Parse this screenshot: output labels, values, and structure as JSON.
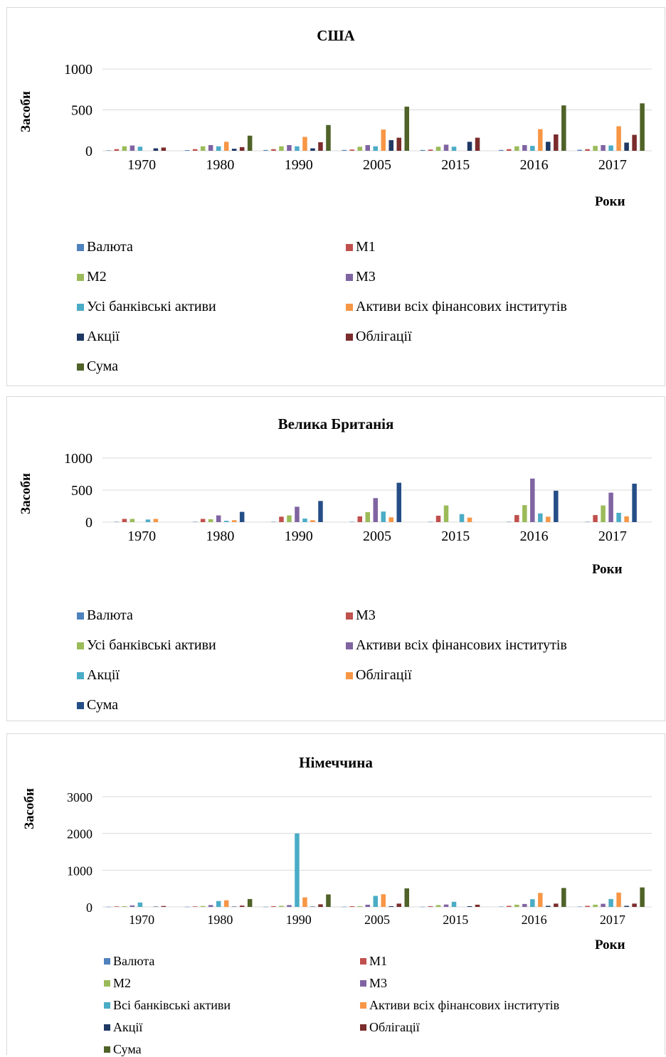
{
  "chart_data": [
    {
      "type": "bar",
      "title": "США",
      "xlabel": "Роки",
      "ylabel": "Засоби",
      "ylim": [
        0,
        1000
      ],
      "yticks": [
        0,
        500,
        1000
      ],
      "grid": true,
      "legend_position": "bottom",
      "categories": [
        "1970",
        "1980",
        "1990",
        "2005",
        "2015",
        "2016",
        "2017"
      ],
      "series": [
        {
          "name": "Валюта",
          "color": "#4f81bd",
          "values": [
            5,
            8,
            10,
            10,
            10,
            10,
            12
          ]
        },
        {
          "name": "М1",
          "color": "#c0504d",
          "values": [
            20,
            20,
            20,
            15,
            15,
            20,
            20
          ]
        },
        {
          "name": "М2",
          "color": "#9bbb59",
          "values": [
            55,
            55,
            55,
            50,
            50,
            55,
            60
          ]
        },
        {
          "name": "М3",
          "color": "#8064a2",
          "values": [
            65,
            70,
            70,
            70,
            75,
            70,
            70
          ]
        },
        {
          "name": "Усі банківські активи",
          "color": "#4bacc6",
          "values": [
            50,
            55,
            55,
            55,
            50,
            60,
            65
          ]
        },
        {
          "name": "Активи всіх фінансових інститутів",
          "color": "#f79646",
          "values": [
            0,
            110,
            170,
            260,
            0,
            265,
            300
          ]
        },
        {
          "name": "Акції",
          "color": "#1f3864",
          "values": [
            30,
            25,
            30,
            130,
            110,
            110,
            100
          ]
        },
        {
          "name": "Облігації",
          "color": "#7b2c2c",
          "values": [
            40,
            45,
            105,
            160,
            160,
            200,
            195
          ]
        },
        {
          "name": "Сума",
          "color": "#4f6228",
          "values": [
            0,
            185,
            315,
            540,
            0,
            555,
            580
          ]
        }
      ]
    },
    {
      "type": "bar",
      "title": "Велика Британія",
      "xlabel": "Роки",
      "ylabel": "Засоби",
      "ylim": [
        0,
        1000
      ],
      "yticks": [
        0,
        500,
        1000
      ],
      "grid": true,
      "legend_position": "bottom",
      "categories": [
        "1970",
        "1980",
        "1990",
        "2005",
        "2015",
        "2016",
        "2017"
      ],
      "series": [
        {
          "name": "Валюта",
          "color": "#4f81bd",
          "values": [
            5,
            5,
            5,
            5,
            5,
            5,
            5
          ]
        },
        {
          "name": "М3",
          "color": "#c0504d",
          "values": [
            50,
            50,
            85,
            90,
            100,
            110,
            110
          ]
        },
        {
          "name": "Усі банківські активи",
          "color": "#9bbb59",
          "values": [
            50,
            45,
            105,
            155,
            260,
            265,
            260
          ]
        },
        {
          "name": "Активи всіх фінансових інститутів",
          "color": "#8064a2",
          "values": [
            0,
            105,
            240,
            375,
            0,
            680,
            460
          ]
        },
        {
          "name": "Акції",
          "color": "#4bacc6",
          "values": [
            40,
            20,
            55,
            165,
            125,
            135,
            145
          ]
        },
        {
          "name": "Облігації",
          "color": "#f79646",
          "values": [
            50,
            30,
            30,
            75,
            70,
            85,
            90
          ]
        },
        {
          "name": "Сума",
          "color": "#254e87",
          "values": [
            0,
            160,
            330,
            615,
            0,
            490,
            600
          ]
        }
      ]
    },
    {
      "type": "bar",
      "title": "Німеччина",
      "xlabel": "Роки",
      "ylabel": "Засоби",
      "ylim": [
        0,
        3000
      ],
      "yticks": [
        0,
        1000,
        2000,
        3000
      ],
      "grid": true,
      "legend_position": "bottom",
      "categories": [
        "1970",
        "1980",
        "1990",
        "2005",
        "2015",
        "2016",
        "2017"
      ],
      "series": [
        {
          "name": "Валюта",
          "color": "#4f81bd",
          "values": [
            5,
            5,
            5,
            5,
            5,
            10,
            10
          ]
        },
        {
          "name": "М1",
          "color": "#c0504d",
          "values": [
            15,
            15,
            20,
            20,
            20,
            30,
            30
          ]
        },
        {
          "name": "М2",
          "color": "#9bbb59",
          "values": [
            20,
            25,
            30,
            20,
            50,
            60,
            60
          ]
        },
        {
          "name": "М3",
          "color": "#8064a2",
          "values": [
            40,
            50,
            50,
            60,
            65,
            80,
            85
          ]
        },
        {
          "name": "Всі банківські активи",
          "color": "#4bacc6",
          "values": [
            120,
            160,
            2000,
            300,
            140,
            210,
            215
          ]
        },
        {
          "name": "Активи всіх фінансових інститутів",
          "color": "#f79646",
          "values": [
            0,
            180,
            260,
            345,
            0,
            380,
            390
          ]
        },
        {
          "name": "Акції",
          "color": "#1f3864",
          "values": [
            10,
            10,
            10,
            20,
            20,
            30,
            30
          ]
        },
        {
          "name": "Облігації",
          "color": "#7b2c2c",
          "values": [
            25,
            35,
            70,
            90,
            60,
            90,
            90
          ]
        },
        {
          "name": "Сума",
          "color": "#4f6228",
          "values": [
            0,
            215,
            340,
            505,
            0,
            515,
            530
          ]
        }
      ]
    }
  ]
}
